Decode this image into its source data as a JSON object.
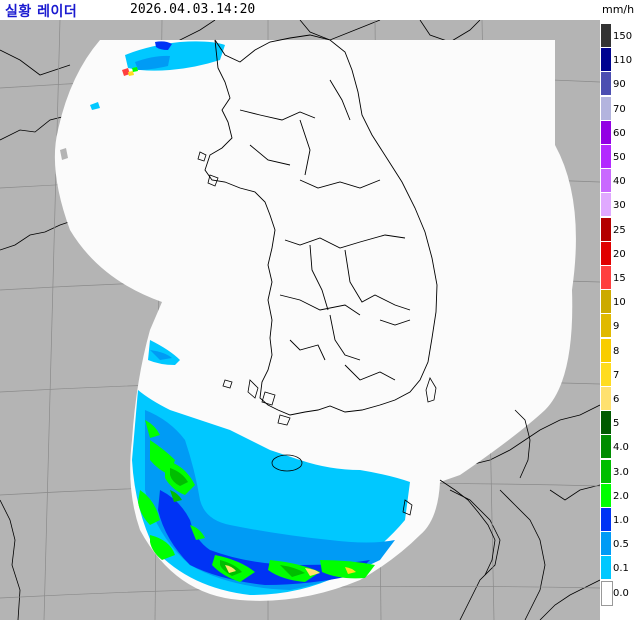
{
  "header": {
    "title": "실황 레이더",
    "timestamp": "2026.04.03.14:20",
    "unit": "mm/h"
  },
  "legend": {
    "levels": [
      {
        "label": "150",
        "color": "#333333"
      },
      {
        "label": "110",
        "color": "#000390"
      },
      {
        "label": "90",
        "color": "#4c4eb1"
      },
      {
        "label": "70",
        "color": "#b3b4de"
      },
      {
        "label": "60",
        "color": "#9300e4"
      },
      {
        "label": "50",
        "color": "#b329ff"
      },
      {
        "label": "40",
        "color": "#c969ff"
      },
      {
        "label": "30",
        "color": "#e0a9ff"
      },
      {
        "label": "25",
        "color": "#b40000"
      },
      {
        "label": "20",
        "color": "#e00000"
      },
      {
        "label": "15",
        "color": "#ff3f3f"
      },
      {
        "label": "10",
        "color": "#ccaa00"
      },
      {
        "label": "9",
        "color": "#e0b900"
      },
      {
        "label": "8",
        "color": "#f9cd00"
      },
      {
        "label": "7",
        "color": "#ffdc1f"
      },
      {
        "label": "6",
        "color": "#ffe16f"
      },
      {
        "label": "5",
        "color": "#005a00"
      },
      {
        "label": "4.0",
        "color": "#008c00"
      },
      {
        "label": "3.0",
        "color": "#00be00"
      },
      {
        "label": "2.0",
        "color": "#00ff00"
      },
      {
        "label": "1.0",
        "color": "#0033f5"
      },
      {
        "label": "0.5",
        "color": "#009bf5"
      },
      {
        "label": "0.1",
        "color": "#00c8ff"
      },
      {
        "label": "0.0",
        "color": "#ffffff"
      }
    ]
  },
  "map": {
    "background_color": "#b4b4b4",
    "coverage_color": "#fbfbfb",
    "graticule_color": "#888888",
    "coastline_color": "#000000"
  }
}
